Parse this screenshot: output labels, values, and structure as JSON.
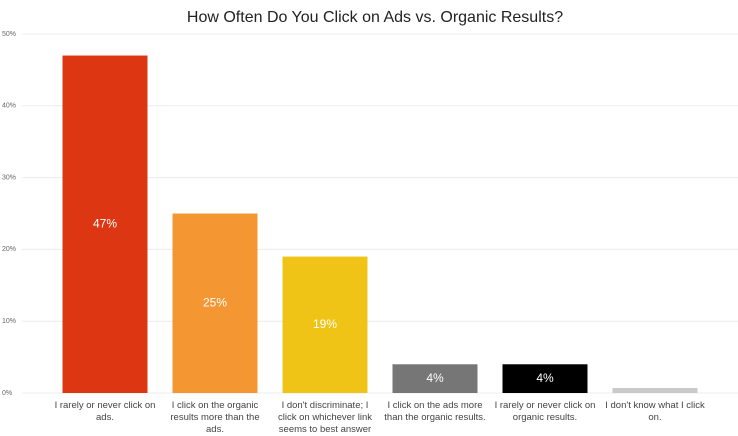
{
  "chart_data": {
    "type": "bar",
    "title": "How Often Do You Click on Ads vs. Organic Results?",
    "categories": [
      "I rarely or never click on ads.",
      "I click on the organic results more than the ads.",
      "I don't discriminate; I click on whichever link seems to best answer my question.",
      "I click on the ads more than the organic results.",
      "I rarely or never click on organic results.",
      "I don't know what I click on."
    ],
    "values": [
      47,
      25,
      19,
      4,
      4,
      0.7
    ],
    "value_labels": [
      "47%",
      "25%",
      "19%",
      "4%",
      "4%",
      null
    ],
    "colors": [
      "#dc3712",
      "#f49631",
      "#f0c417",
      "#767676",
      "#000000",
      "#c9c9c9"
    ],
    "ylim": [
      0,
      50
    ],
    "yticks": [
      {
        "value": 0,
        "label": "0%"
      },
      {
        "value": 10,
        "label": "10%"
      },
      {
        "value": 20,
        "label": "20%"
      },
      {
        "value": 30,
        "label": "30%"
      },
      {
        "value": 40,
        "label": "40%"
      },
      {
        "value": 50,
        "label": "50%"
      }
    ],
    "grid": true
  }
}
